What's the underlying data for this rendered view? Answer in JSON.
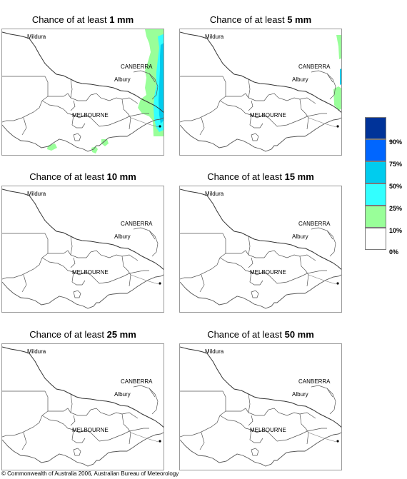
{
  "panels": [
    {
      "prefix": "Chance of at least ",
      "amount": "1 mm",
      "rain": "heavy"
    },
    {
      "prefix": "Chance of at least ",
      "amount": "5 mm",
      "rain": "light"
    },
    {
      "prefix": "Chance of at least ",
      "amount": "10 mm",
      "rain": "none"
    },
    {
      "prefix": "Chance of at least ",
      "amount": "15 mm",
      "rain": "none"
    },
    {
      "prefix": "Chance of at least ",
      "amount": "25 mm",
      "rain": "none"
    },
    {
      "prefix": "Chance of at least ",
      "amount": "50 mm",
      "rain": "none"
    }
  ],
  "places": {
    "mildura": "Mildura",
    "canberra": "CANBERRA",
    "albury": "Albury",
    "melbourne": "MELBOURNE"
  },
  "legend": {
    "labels": [
      "90%",
      "75%",
      "50%",
      "25%",
      "10%",
      "0%"
    ],
    "colors": [
      "#003399",
      "#0066ff",
      "#00ccee",
      "#33ffff",
      "#99ff99",
      "#ffffff"
    ]
  },
  "copyright": "© Commonwealth of Australia 2006, Australian Bureau of Meteorology"
}
